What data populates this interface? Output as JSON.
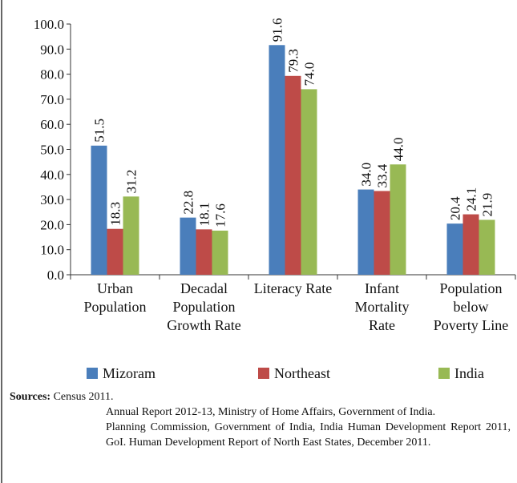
{
  "chart_data": {
    "type": "bar",
    "categories": [
      "Urban Population",
      "Decadal Population Growth Rate",
      "Literacy Rate",
      "Infant Mortality Rate",
      "Population below Poverty Line"
    ],
    "series": [
      {
        "name": "Mizoram",
        "color": "#4a7ebb",
        "values": [
          51.5,
          22.8,
          91.6,
          34.0,
          20.4
        ],
        "value_labels": [
          "51.5",
          "22.8",
          "91.6",
          "34.0",
          "20.4"
        ]
      },
      {
        "name": "Northeast",
        "color": "#be4b48",
        "values": [
          18.3,
          18.1,
          79.3,
          33.4,
          24.1
        ],
        "value_labels": [
          "18.3",
          "18.1",
          "79.3",
          "33.4",
          "24.1"
        ]
      },
      {
        "name": "India",
        "color": "#98b954",
        "values": [
          31.2,
          17.6,
          74.0,
          44.0,
          21.9
        ],
        "value_labels": [
          "31.2",
          "17.6",
          "74.0",
          "44.0",
          "21.9"
        ]
      }
    ],
    "ylim": [
      0,
      100
    ],
    "yticks": [
      {
        "value": 0,
        "label": "0.0"
      },
      {
        "value": 10,
        "label": "10.0"
      },
      {
        "value": 20,
        "label": "20.0"
      },
      {
        "value": 30,
        "label": "30.0"
      },
      {
        "value": 40,
        "label": "40.0"
      },
      {
        "value": 50,
        "label": "50.0"
      },
      {
        "value": 60,
        "label": "60.0"
      },
      {
        "value": 70,
        "label": "70.0"
      },
      {
        "value": 80,
        "label": "80.0"
      },
      {
        "value": 90,
        "label": "90.0"
      },
      {
        "value": 100,
        "label": "100.0"
      }
    ],
    "legend": "bottom"
  },
  "sources_label": "Sources:",
  "sources": [
    "Census 2011.",
    "Annual Report 2012-13, Ministry of Home Affairs, Government of India.",
    "Planning Commission, Government of India, India Human Development Report 2011, GoI. Human Development Report of North East States, December 2011."
  ]
}
